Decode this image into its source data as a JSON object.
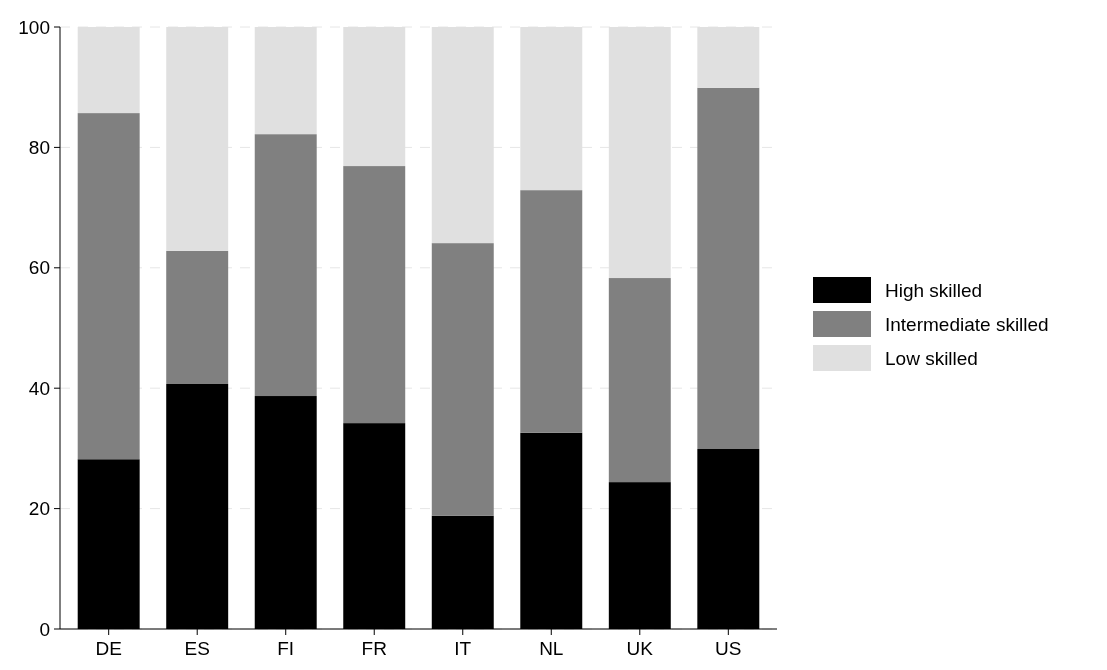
{
  "chart_data": {
    "type": "bar",
    "stacked": true,
    "categories": [
      "DE",
      "ES",
      "FI",
      "FR",
      "IT",
      "NL",
      "UK",
      "US"
    ],
    "series": [
      {
        "name": "High skilled",
        "color": "#000000",
        "values": [
          28.2,
          40.7,
          38.7,
          34.2,
          18.8,
          32.6,
          24.4,
          29.9
        ]
      },
      {
        "name": "Intermediate skilled",
        "color": "#808080",
        "values": [
          57.5,
          22.1,
          43.5,
          42.7,
          45.3,
          40.3,
          33.9,
          60.0
        ]
      },
      {
        "name": "Low skilled",
        "color": "#e0e0e0",
        "values": [
          14.3,
          37.2,
          17.8,
          23.1,
          35.9,
          27.1,
          41.7,
          10.1
        ]
      }
    ],
    "ylim": [
      0,
      100
    ],
    "yticks": [
      0,
      20,
      40,
      60,
      80,
      100
    ],
    "grid": "y",
    "legend": "right"
  }
}
